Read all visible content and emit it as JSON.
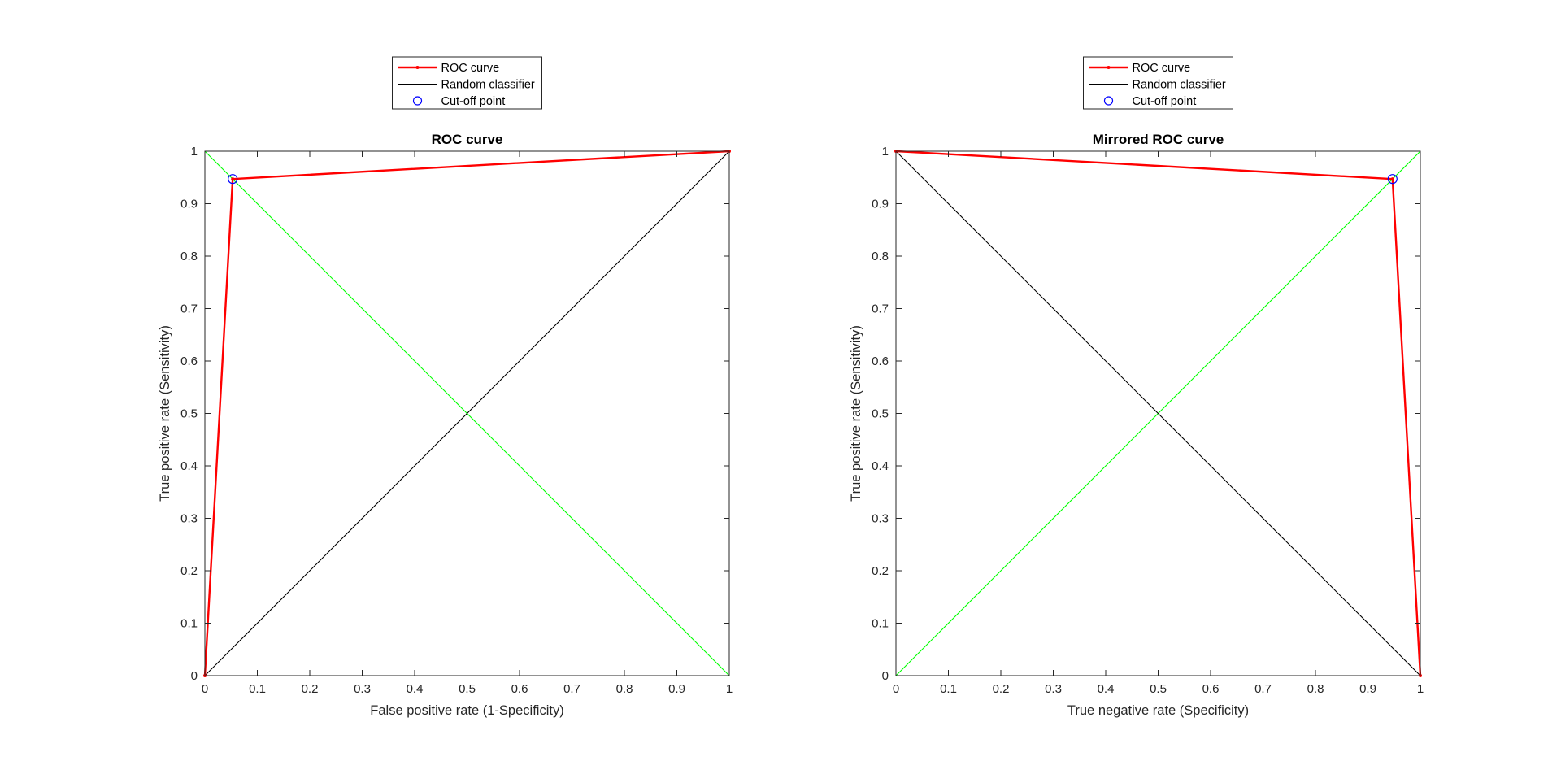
{
  "figure": {
    "background": "#ffffff"
  },
  "colors": {
    "roc": "#ff0000",
    "random": "#000000",
    "diagonal": "#00ff00",
    "cutoff": "#0000ff",
    "axis": "#262626"
  },
  "chart_data": [
    {
      "type": "line",
      "title": "ROC curve",
      "xlabel": "False positive rate (1-Specificity)",
      "ylabel": "True positive rate (Sensitivity)",
      "xlim": [
        0,
        1
      ],
      "ylim": [
        0,
        1
      ],
      "x_ticks": [
        "0",
        "0.1",
        "0.2",
        "0.3",
        "0.4",
        "0.5",
        "0.6",
        "0.7",
        "0.8",
        "0.9",
        "1"
      ],
      "y_ticks": [
        "0",
        "0.1",
        "0.2",
        "0.3",
        "0.4",
        "0.5",
        "0.6",
        "0.7",
        "0.8",
        "0.9",
        "1"
      ],
      "grid": false,
      "legend": {
        "placement": "top-outside",
        "entries": [
          "ROC curve",
          "Random classifier",
          "Cut-off point"
        ]
      },
      "series": [
        {
          "name": "ROC curve",
          "color": "#ff0000",
          "style": "line-marker",
          "x": [
            0,
            0.053,
            1
          ],
          "y": [
            0,
            0.947,
            1
          ]
        },
        {
          "name": "Random classifier",
          "color": "#000000",
          "style": "line",
          "x": [
            0,
            1
          ],
          "y": [
            0,
            1
          ]
        },
        {
          "name": "Cut-off point",
          "color": "#0000ff",
          "style": "circle",
          "x": [
            0.053
          ],
          "y": [
            0.947
          ]
        },
        {
          "color": "#00ff00",
          "style": "line",
          "x": [
            0,
            1
          ],
          "y": [
            1,
            0
          ]
        }
      ]
    },
    {
      "type": "line",
      "title": "Mirrored ROC curve",
      "xlabel": "True negative rate (Specificity)",
      "ylabel": "True positive rate (Sensitivity)",
      "xlim": [
        0,
        1
      ],
      "ylim": [
        0,
        1
      ],
      "x_ticks": [
        "0",
        "0.1",
        "0.2",
        "0.3",
        "0.4",
        "0.5",
        "0.6",
        "0.7",
        "0.8",
        "0.9",
        "1"
      ],
      "y_ticks": [
        "0",
        "0.1",
        "0.2",
        "0.3",
        "0.4",
        "0.5",
        "0.6",
        "0.7",
        "0.8",
        "0.9",
        "1"
      ],
      "grid": false,
      "legend": {
        "placement": "top-outside",
        "entries": [
          "ROC curve",
          "Random classifier",
          "Cut-off point"
        ]
      },
      "series": [
        {
          "name": "ROC curve",
          "color": "#ff0000",
          "style": "line-marker",
          "x": [
            1,
            0.947,
            0
          ],
          "y": [
            0,
            0.947,
            1
          ]
        },
        {
          "name": "Random classifier",
          "color": "#000000",
          "style": "line",
          "x": [
            0,
            1
          ],
          "y": [
            1,
            0
          ]
        },
        {
          "name": "Cut-off point",
          "color": "#0000ff",
          "style": "circle",
          "x": [
            0.947
          ],
          "y": [
            0.947
          ]
        },
        {
          "color": "#00ff00",
          "style": "line",
          "x": [
            0,
            1
          ],
          "y": [
            0,
            1
          ]
        }
      ]
    }
  ]
}
